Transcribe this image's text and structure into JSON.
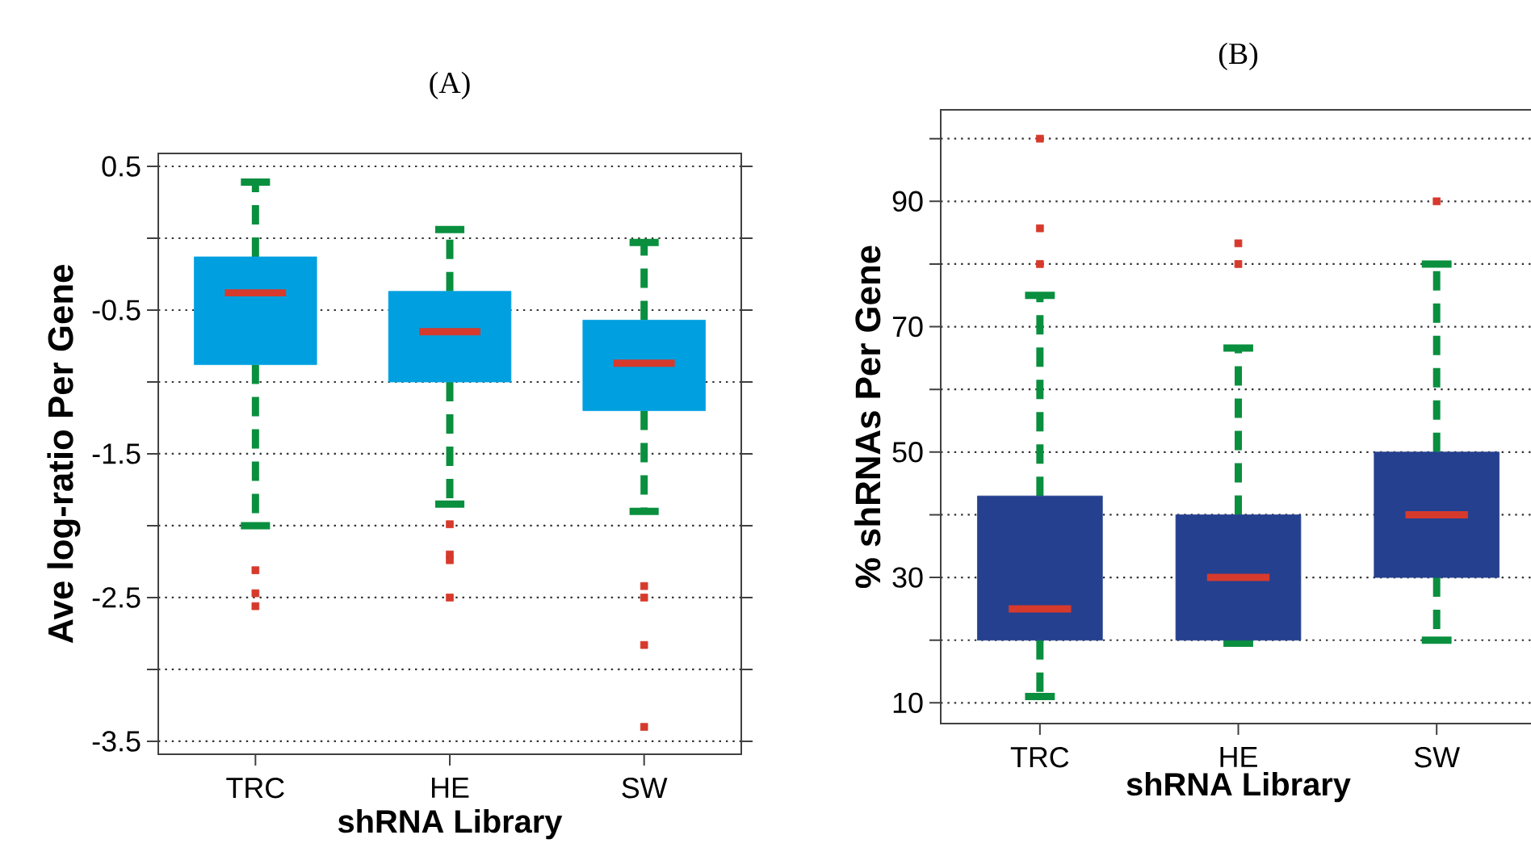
{
  "chart_data": [
    {
      "type": "box",
      "title": "(A)",
      "xlabel": "shRNA Library",
      "ylabel": "Ave log-ratio Per Gene",
      "categories": [
        "TRC",
        "HE",
        "SW"
      ],
      "series": [
        {
          "color": "#00a0e0",
          "boxes": [
            {
              "low": -2.0,
              "q1": -0.88,
              "median": -0.38,
              "q3": -0.13,
              "high": 0.39,
              "outliers": [
                -2.31,
                -2.47,
                -2.56
              ]
            },
            {
              "low": -1.85,
              "q1": -1.0,
              "median": -0.65,
              "q3": -0.37,
              "high": 0.06,
              "outliers": [
                -1.99,
                -2.2,
                -2.24,
                -2.5
              ]
            },
            {
              "low": -1.9,
              "q1": -1.2,
              "median": -0.87,
              "q3": -0.57,
              "high": -0.03,
              "outliers": [
                -2.42,
                -2.5,
                -2.83,
                -3.4
              ]
            }
          ]
        }
      ],
      "ylim": [
        -3.59,
        0.59
      ],
      "yticks": [
        0.5,
        {
          "value": 0,
          "label": null
        },
        -0.5,
        {
          "value": -1,
          "label": null
        },
        -1.5,
        {
          "value": -2,
          "label": null
        },
        -2.5,
        {
          "value": -3,
          "label": null
        },
        -3.5
      ],
      "grid": "y"
    },
    {
      "type": "box",
      "title": "(B)",
      "xlabel": "shRNA Library",
      "ylabel": "% shRNAs Per Gene",
      "categories": [
        "TRC",
        "HE",
        "SW"
      ],
      "series": [
        {
          "color": "#25408f",
          "boxes": [
            {
              "low": 11,
              "q1": 20,
              "median": 25,
              "q3": 43,
              "high": 75,
              "outliers": [
                80,
                85.7,
                100
              ]
            },
            {
              "low": 19.5,
              "q1": 20,
              "median": 30,
              "q3": 40,
              "high": 66.6,
              "outliers": [
                80,
                83.3
              ]
            },
            {
              "low": 20,
              "q1": 30,
              "median": 40,
              "q3": 50,
              "high": 80,
              "outliers": [
                90
              ]
            }
          ]
        }
      ],
      "ylim": [
        6.7,
        104.6
      ],
      "yticks": [
        10,
        {
          "value": 20,
          "label": null
        },
        30,
        {
          "value": 40,
          "label": null
        },
        50,
        {
          "value": 60,
          "label": null
        },
        70,
        {
          "value": 80,
          "label": null
        },
        90,
        {
          "value": 100,
          "label": null
        }
      ],
      "grid": "y"
    }
  ]
}
